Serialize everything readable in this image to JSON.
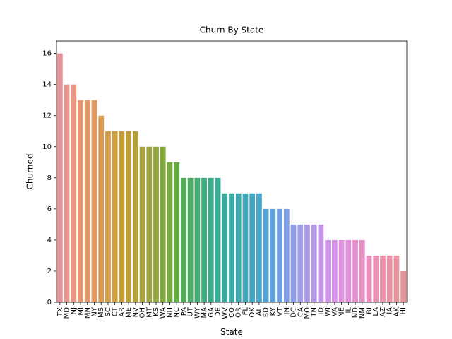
{
  "chart_data": {
    "type": "bar",
    "title": "Churn By State",
    "x_label": "State",
    "y_label": "Churned",
    "categories": [
      "TX",
      "MD",
      "NJ",
      "MI",
      "MN",
      "NY",
      "MS",
      "SC",
      "CT",
      "AR",
      "ME",
      "NV",
      "OH",
      "MT",
      "KS",
      "WA",
      "NH",
      "NC",
      "PA",
      "UT",
      "WY",
      "MA",
      "GA",
      "DE",
      "WV",
      "CO",
      "OR",
      "FL",
      "OK",
      "AL",
      "SD",
      "KY",
      "VT",
      "IN",
      "DC",
      "CA",
      "MO",
      "TN",
      "ID",
      "WI",
      "VA",
      "NE",
      "IL",
      "ND",
      "NM",
      "RI",
      "LA",
      "AZ",
      "IA",
      "AK",
      "HI"
    ],
    "values": [
      16,
      14,
      14,
      13,
      13,
      13,
      12,
      11,
      11,
      11,
      11,
      11,
      10,
      10,
      10,
      10,
      9,
      9,
      8,
      8,
      8,
      8,
      8,
      8,
      7,
      7,
      7,
      7,
      7,
      7,
      6,
      6,
      6,
      6,
      5,
      5,
      5,
      5,
      5,
      4,
      4,
      4,
      4,
      4,
      4,
      3,
      3,
      3,
      3,
      3,
      2
    ],
    "colors": [
      "#e8939a",
      "#e9958d",
      "#e99782",
      "#e69876",
      "#e3996a",
      "#e09a5e",
      "#dc9b52",
      "#d69c47",
      "#cf9e40",
      "#c69f3c",
      "#bda03b",
      "#b3a23b",
      "#a9a33b",
      "#9ea53b",
      "#92a73b",
      "#84a93c",
      "#74ab3c",
      "#62ad44",
      "#52ae55",
      "#4aae65",
      "#44ae74",
      "#40ad81",
      "#3dad8c",
      "#3bac96",
      "#3aab9f",
      "#3aaaa7",
      "#3ba9af",
      "#3ea8b8",
      "#42a7c1",
      "#48a6ca",
      "#52a4d4",
      "#5fa3dc",
      "#6ea1e2",
      "#7fa0e6",
      "#8f9ee8",
      "#9e9ce9",
      "#ab9ae9",
      "#b899e9",
      "#c497e9",
      "#ce95e8",
      "#d893e6",
      "#e091e1",
      "#e590da",
      "#e88fd1",
      "#e98fc8",
      "#ea90bf",
      "#ea91b6",
      "#ea92ad",
      "#e993a6",
      "#e9939f",
      "#e8949a"
    ],
    "ylim": [
      0,
      16.8
    ],
    "yticks": [
      0,
      2,
      4,
      6,
      8,
      10,
      12,
      14,
      16
    ]
  }
}
